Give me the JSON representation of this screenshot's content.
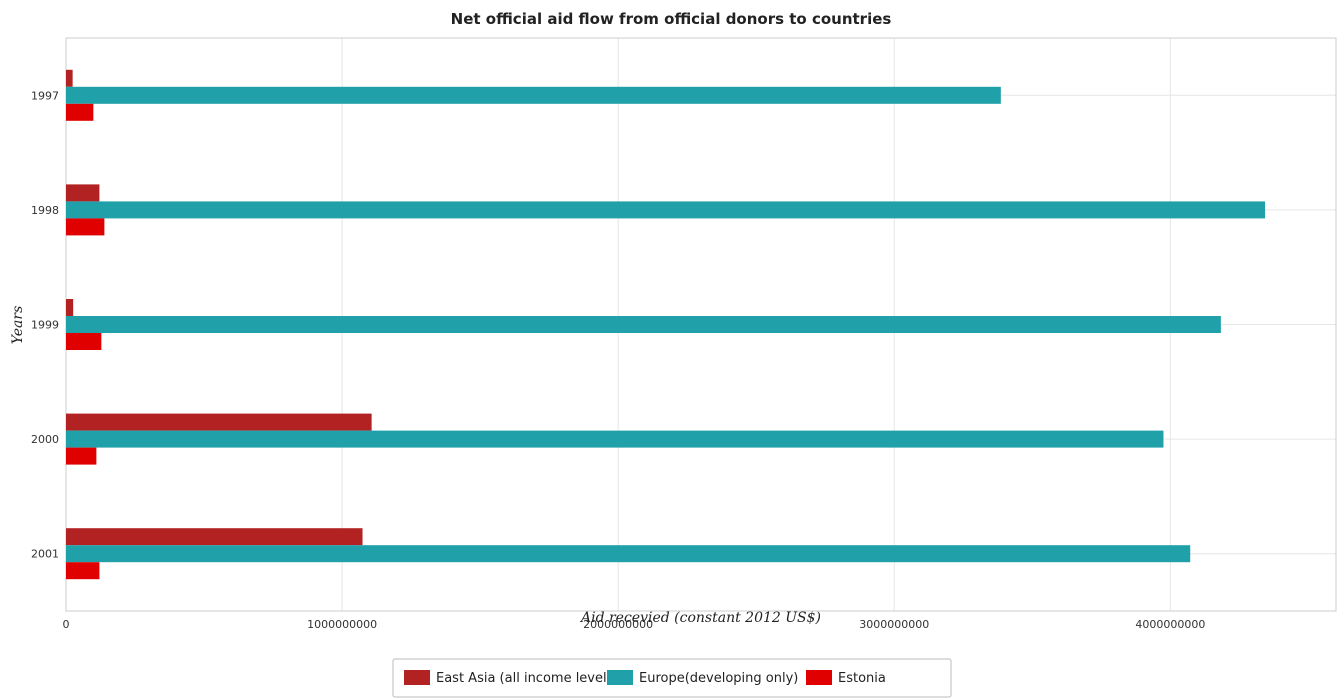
{
  "chart_data": {
    "type": "bar",
    "orientation": "horizontal",
    "title": "Net official aid flow from official donors to countries",
    "xlabel": "Aid recevied (constant 2012 US$)",
    "ylabel": "Years",
    "categories": [
      "1997",
      "1998",
      "1999",
      "2000",
      "2001"
    ],
    "xlim": [
      0,
      4600000000
    ],
    "xticks": [
      0,
      1000000000,
      2000000000,
      3000000000,
      4000000000
    ],
    "xtick_labels": [
      "0",
      "1000000000",
      "2000000000",
      "3000000000",
      "4000000000"
    ],
    "grid": true,
    "legend_position": "bottom",
    "series": [
      {
        "name": "East Asia (all income levels)",
        "color": "#b22222",
        "values": [
          24000000,
          121000000,
          26000000,
          1107000000,
          1074000000
        ]
      },
      {
        "name": "Europe(developing only)",
        "color": "#20a0a8",
        "values": [
          3386000000,
          4343000000,
          4183000000,
          3975000000,
          4072000000
        ]
      },
      {
        "name": "Estonia",
        "color": "#e00000",
        "values": [
          99000000,
          139000000,
          128000000,
          110000000,
          121000000
        ]
      }
    ]
  }
}
